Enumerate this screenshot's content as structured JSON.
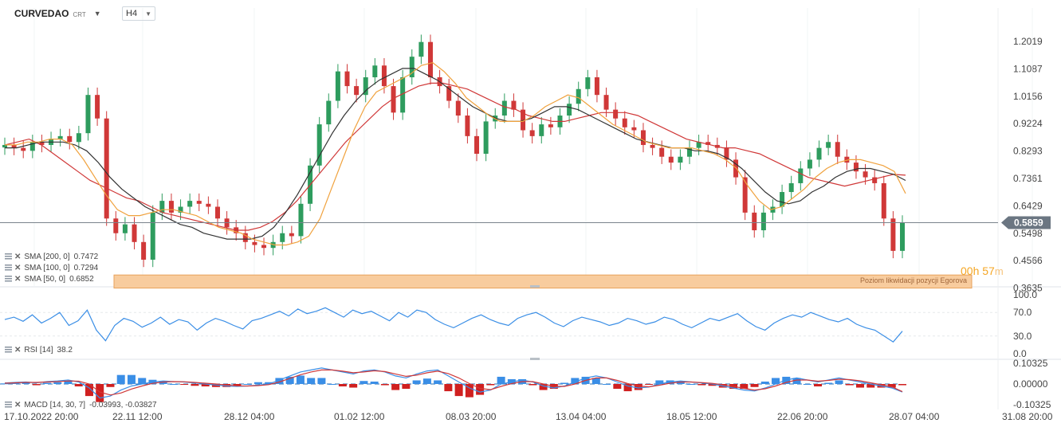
{
  "toolbar": {
    "symbol": "CURVEDAO",
    "symbol_suffix": "CRT",
    "timeframe": "H4"
  },
  "indicators": {
    "sma200": {
      "label": "SMA [200,  0]",
      "value": "0.7472"
    },
    "sma100": {
      "label": "SMA [100,  0]",
      "value": "0.7294"
    },
    "sma50": {
      "label": "SMA [50,  0]",
      "value": "0.6852"
    },
    "rsi": {
      "label": "RSI [14]",
      "value": "38.2"
    },
    "macd": {
      "label": "MACD [14, 30, 7]",
      "value": "-0.03993,  -0.03827"
    }
  },
  "countdown": {
    "hours": "00h",
    "minutes": "57",
    "unit": "m"
  },
  "colors": {
    "up": "#2e9c5e",
    "down": "#d03838",
    "sma50": "#f0a23e",
    "sma100": "#333333",
    "sma200": "#d03838",
    "rsi": "#3a8ee6",
    "macd_line": "#3a8ee6",
    "signal_line": "#d03838",
    "zone_fill": "#f8cc9e",
    "zone_border": "#e8a25c",
    "price_tag": "#6b7682"
  },
  "chart_data": {
    "type": "candlestick",
    "price": {
      "y_ticks": [
        "1.2019",
        "1.1087",
        "1.0156",
        "0.9224",
        "0.8293",
        "0.7361",
        "0.6429",
        "0.5498",
        "0.4566",
        "0.3635"
      ],
      "ylim": [
        0.3635,
        1.2019
      ],
      "last_price": "0.5859",
      "zone": {
        "label": "Poziom likwidacji pozycji Egorova",
        "low": 0.3635,
        "high": 0.408
      },
      "x_ticks": [
        "17.10.2022  20:00",
        "22.11  12:00",
        "28.12  04:00",
        "01.02  12:00",
        "08.03  20:00",
        "13.04  04:00",
        "18.05  12:00",
        "22.06  20:00",
        "28.07  04:00",
        "31.08  20:00"
      ],
      "close_series": [
        0.85,
        0.84,
        0.83,
        0.86,
        0.85,
        0.87,
        0.88,
        0.86,
        0.89,
        1.02,
        0.94,
        0.6,
        0.55,
        0.58,
        0.52,
        0.46,
        0.62,
        0.66,
        0.62,
        0.64,
        0.66,
        0.65,
        0.64,
        0.6,
        0.57,
        0.55,
        0.52,
        0.51,
        0.5,
        0.52,
        0.55,
        0.54,
        0.65,
        0.78,
        0.92,
        1.0,
        1.1,
        1.05,
        1.02,
        1.08,
        1.12,
        1.05,
        0.96,
        1.08,
        1.15,
        1.2,
        1.08,
        1.05,
        1.0,
        0.95,
        0.88,
        0.82,
        0.93,
        0.95,
        1.0,
        0.97,
        0.9,
        0.88,
        0.92,
        0.91,
        0.95,
        0.99,
        1.04,
        1.08,
        1.02,
        0.97,
        0.94,
        0.91,
        0.9,
        0.85,
        0.84,
        0.81,
        0.79,
        0.81,
        0.84,
        0.86,
        0.85,
        0.84,
        0.8,
        0.74,
        0.62,
        0.56,
        0.62,
        0.64,
        0.69,
        0.72,
        0.77,
        0.8,
        0.84,
        0.86,
        0.81,
        0.79,
        0.76,
        0.74,
        0.72,
        0.6,
        0.49,
        0.5859
      ],
      "sma50": [
        0.85,
        0.85,
        0.86,
        0.86,
        0.87,
        0.87,
        0.85,
        0.8,
        0.74,
        0.68,
        0.63,
        0.61,
        0.61,
        0.62,
        0.63,
        0.63,
        0.62,
        0.61,
        0.59,
        0.57,
        0.56,
        0.55,
        0.53,
        0.52,
        0.51,
        0.51,
        0.52,
        0.54,
        0.6,
        0.7,
        0.8,
        0.9,
        0.98,
        1.03,
        1.05,
        1.07,
        1.09,
        1.12,
        1.13,
        1.1,
        1.06,
        1.01,
        0.98,
        0.95,
        0.93,
        0.93,
        0.93,
        0.95,
        0.98,
        1.0,
        1.02,
        1.01,
        0.98,
        0.95,
        0.92,
        0.9,
        0.88,
        0.86,
        0.85,
        0.84,
        0.84,
        0.84,
        0.83,
        0.82,
        0.8,
        0.77,
        0.71,
        0.66,
        0.63,
        0.64,
        0.67,
        0.7,
        0.74,
        0.77,
        0.79,
        0.8,
        0.8,
        0.79,
        0.78,
        0.76,
        0.6852
      ],
      "sma100": [
        0.84,
        0.84,
        0.85,
        0.86,
        0.86,
        0.86,
        0.85,
        0.83,
        0.79,
        0.74,
        0.7,
        0.67,
        0.64,
        0.62,
        0.6,
        0.58,
        0.57,
        0.55,
        0.54,
        0.53,
        0.53,
        0.53,
        0.54,
        0.57,
        0.62,
        0.68,
        0.75,
        0.82,
        0.89,
        0.95,
        1.0,
        1.04,
        1.07,
        1.09,
        1.11,
        1.11,
        1.09,
        1.07,
        1.04,
        1.01,
        0.98,
        0.96,
        0.94,
        0.93,
        0.93,
        0.94,
        0.96,
        0.98,
        0.98,
        0.97,
        0.95,
        0.93,
        0.91,
        0.89,
        0.87,
        0.86,
        0.85,
        0.84,
        0.84,
        0.83,
        0.83,
        0.82,
        0.8,
        0.77,
        0.73,
        0.69,
        0.66,
        0.65,
        0.66,
        0.69,
        0.71,
        0.74,
        0.76,
        0.77,
        0.77,
        0.76,
        0.75,
        0.7294
      ],
      "sma200": [
        0.85,
        0.86,
        0.87,
        0.85,
        0.82,
        0.79,
        0.76,
        0.73,
        0.71,
        0.69,
        0.67,
        0.66,
        0.64,
        0.62,
        0.61,
        0.6,
        0.59,
        0.58,
        0.57,
        0.56,
        0.56,
        0.57,
        0.59,
        0.62,
        0.66,
        0.71,
        0.76,
        0.81,
        0.86,
        0.9,
        0.94,
        0.98,
        1.01,
        1.03,
        1.05,
        1.06,
        1.06,
        1.05,
        1.04,
        1.02,
        1.0,
        0.98,
        0.97,
        0.95,
        0.94,
        0.93,
        0.93,
        0.94,
        0.95,
        0.96,
        0.96,
        0.96,
        0.95,
        0.93,
        0.91,
        0.89,
        0.87,
        0.86,
        0.85,
        0.84,
        0.84,
        0.83,
        0.82,
        0.8,
        0.78,
        0.76,
        0.74,
        0.73,
        0.72,
        0.71,
        0.72,
        0.73,
        0.74,
        0.75,
        0.7472
      ]
    },
    "rsi": {
      "y_ticks": [
        "100.0",
        "70.0",
        "30.0",
        "0.0"
      ],
      "ylim": [
        0,
        100
      ],
      "levels": [
        30,
        70
      ],
      "values": [
        58,
        62,
        55,
        66,
        52,
        60,
        70,
        48,
        56,
        74,
        40,
        22,
        48,
        60,
        55,
        45,
        52,
        62,
        50,
        58,
        54,
        40,
        52,
        60,
        55,
        48,
        42,
        56,
        60,
        66,
        72,
        64,
        76,
        68,
        72,
        78,
        70,
        62,
        74,
        68,
        72,
        64,
        56,
        70,
        62,
        74,
        70,
        58,
        50,
        44,
        52,
        60,
        66,
        58,
        52,
        48,
        60,
        66,
        70,
        62,
        52,
        46,
        56,
        62,
        58,
        54,
        48,
        52,
        60,
        56,
        50,
        54,
        62,
        58,
        50,
        44,
        52,
        60,
        56,
        62,
        68,
        56,
        46,
        40,
        52,
        60,
        66,
        62,
        70,
        64,
        58,
        54,
        60,
        50,
        44,
        40,
        30,
        20,
        38.2
      ]
    },
    "macd": {
      "y_ticks": [
        "0.10325",
        "0.00000",
        "-0.10325"
      ],
      "ylim": [
        -0.12,
        0.12
      ],
      "macd_values": [
        0.005,
        0.008,
        0.01,
        0.006,
        0.012,
        0.015,
        0.02,
        0.01,
        -0.02,
        -0.07,
        -0.06,
        -0.03,
        -0.01,
        0.0,
        0.01,
        0.015,
        0.012,
        0.01,
        0.005,
        0.0,
        -0.005,
        -0.01,
        -0.012,
        -0.01,
        -0.005,
        0.0,
        0.02,
        0.04,
        0.06,
        0.07,
        0.08,
        0.07,
        0.06,
        0.05,
        0.065,
        0.07,
        0.06,
        0.04,
        0.03,
        0.05,
        0.065,
        0.07,
        0.04,
        0.01,
        -0.02,
        -0.04,
        -0.03,
        0.0,
        0.01,
        0.02,
        0.01,
        -0.01,
        -0.02,
        -0.01,
        0.01,
        0.03,
        0.04,
        0.03,
        0.01,
        -0.01,
        -0.02,
        -0.015,
        0.0,
        0.01,
        0.015,
        0.01,
        0.005,
        0.0,
        -0.01,
        -0.02,
        -0.03,
        -0.035,
        -0.02,
        0.0,
        0.02,
        0.03,
        0.02,
        0.01,
        0.02,
        0.03,
        0.02,
        0.01,
        0.0,
        -0.01,
        -0.02,
        -0.04
      ],
      "signal_values": [
        0.004,
        0.006,
        0.008,
        0.008,
        0.01,
        0.012,
        0.015,
        0.014,
        0.0,
        -0.04,
        -0.055,
        -0.045,
        -0.025,
        -0.01,
        0.003,
        0.01,
        0.012,
        0.011,
        0.008,
        0.004,
        0.0,
        -0.005,
        -0.009,
        -0.01,
        -0.008,
        -0.003,
        0.01,
        0.028,
        0.046,
        0.06,
        0.07,
        0.07,
        0.064,
        0.056,
        0.06,
        0.066,
        0.062,
        0.05,
        0.038,
        0.044,
        0.056,
        0.064,
        0.052,
        0.03,
        0.002,
        -0.022,
        -0.028,
        -0.012,
        0.002,
        0.012,
        0.012,
        0.0,
        -0.012,
        -0.012,
        0.0,
        0.018,
        0.03,
        0.03,
        0.018,
        0.002,
        -0.01,
        -0.014,
        -0.006,
        0.004,
        0.01,
        0.01,
        0.007,
        0.003,
        -0.004,
        -0.012,
        -0.022,
        -0.03,
        -0.024,
        -0.01,
        0.008,
        0.02,
        0.02,
        0.014,
        0.018,
        0.024,
        0.022,
        0.016,
        0.006,
        -0.004,
        -0.014,
        -0.038
      ]
    }
  }
}
